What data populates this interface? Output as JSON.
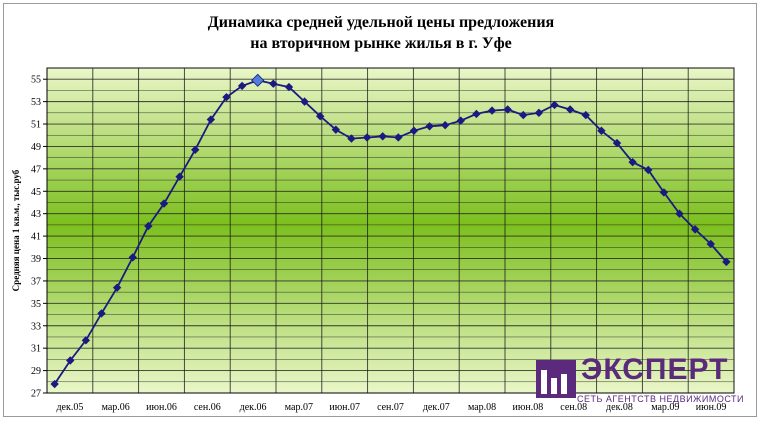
{
  "title": {
    "line1": "Динамика средней удельной цены предложения",
    "line2": "на вторичном рынке жилья в г. Уфе"
  },
  "logo": {
    "name": "ЭКСПЕРТ",
    "tagline": "СЕТЬ АГЕНТСТВ НЕДВИЖИМОСТИ",
    "color": "#5b2a7c",
    "icon": "building-icon"
  },
  "chart_data": {
    "type": "line",
    "title": "Динамика средней удельной цены предложения на вторичном рынке жилья в г. Уфе",
    "ylabel": "Средняя цена 1 кв.м., тыс.руб",
    "xlabel": "",
    "ylim": [
      27,
      56
    ],
    "yticks": [
      27,
      29,
      31,
      33,
      35,
      37,
      39,
      41,
      43,
      45,
      47,
      49,
      51,
      53,
      55
    ],
    "x_tick_labels": [
      "дек.05",
      "мар.06",
      "июн.06",
      "сен.06",
      "дек.06",
      "мар.07",
      "июн.07",
      "сен.07",
      "дек.07",
      "мар.08",
      "июн.08",
      "сен.08",
      "дек.08",
      "мар.09",
      "июн.09"
    ],
    "grid": true,
    "legend": "none",
    "series": [
      {
        "color": "#1a1a80",
        "highlight_index": 13,
        "highlight_color": "#4f7fd8",
        "values": [
          27.8,
          29.9,
          31.7,
          34.1,
          36.4,
          39.1,
          41.9,
          43.9,
          46.3,
          48.7,
          51.4,
          53.4,
          54.4,
          54.9,
          54.6,
          54.3,
          53.0,
          51.7,
          50.5,
          49.7,
          49.8,
          49.9,
          49.8,
          50.4,
          50.8,
          50.9,
          51.3,
          51.9,
          52.2,
          52.3,
          51.8,
          52.0,
          52.7,
          52.3,
          51.8,
          50.4,
          49.3,
          47.6,
          46.9,
          44.9,
          43.0,
          41.6,
          40.3,
          38.7
        ]
      }
    ]
  }
}
